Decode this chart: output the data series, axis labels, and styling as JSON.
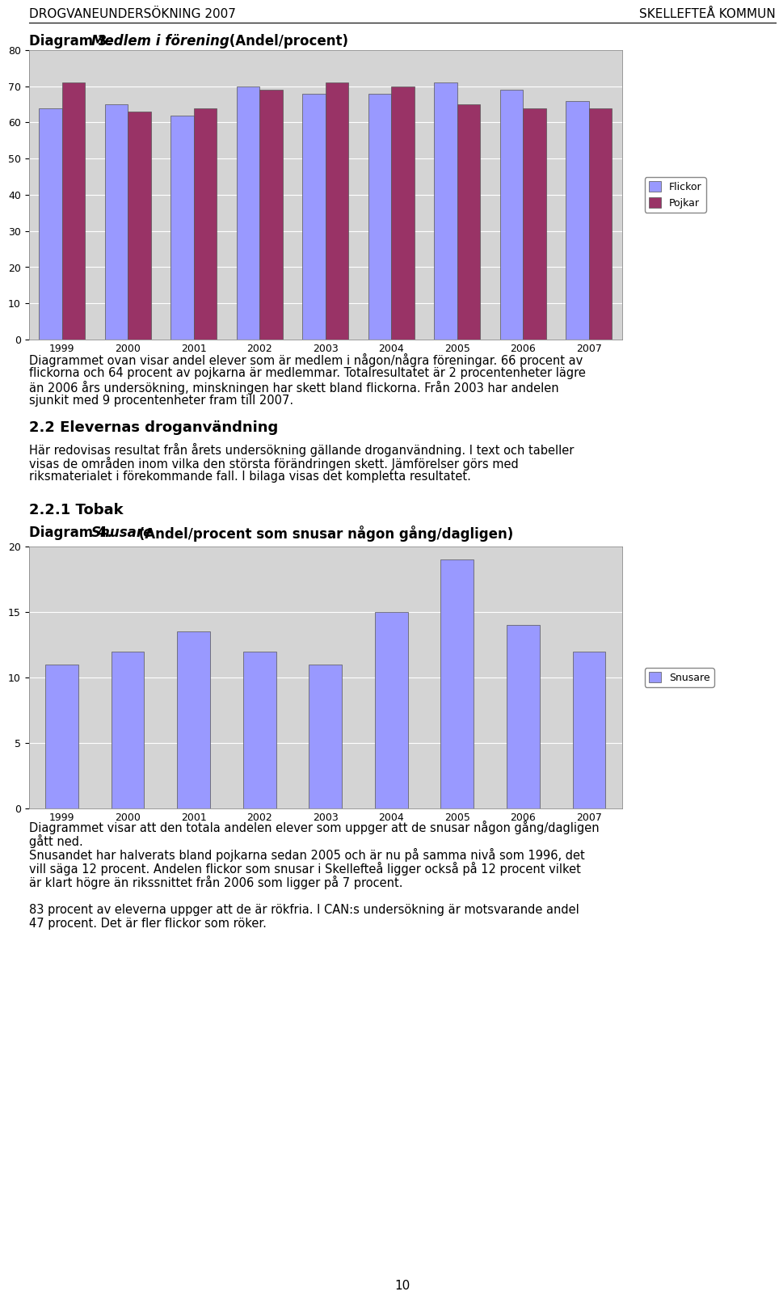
{
  "header_left": "DROGVANEUNDERSÖKNING 2007",
  "header_right": "SKELLEFTEÅ KOMMUN",
  "years": [
    1999,
    2000,
    2001,
    2002,
    2003,
    2004,
    2005,
    2006,
    2007
  ],
  "flickor_values": [
    64,
    65,
    62,
    70,
    68,
    68,
    71,
    69,
    66
  ],
  "pojkar_values": [
    71,
    63,
    64,
    69,
    71,
    70,
    65,
    64,
    64
  ],
  "flickor_color": "#9999ff",
  "pojkar_color": "#993366",
  "chart1_ylim": [
    0,
    80
  ],
  "chart1_yticks": [
    0,
    10,
    20,
    30,
    40,
    50,
    60,
    70,
    80
  ],
  "chart1_bg": "#d4d4d4",
  "section_title": "2.2 Elevernas droganvändning",
  "subsection_title": "2.2.1 Tobak",
  "snusare_values": [
    11,
    12,
    13.5,
    12,
    11,
    15,
    19,
    14,
    12
  ],
  "snusare_color": "#9999ff",
  "chart2_ylim": [
    0,
    20
  ],
  "chart2_yticks": [
    0,
    5,
    10,
    15,
    20
  ],
  "chart2_bg": "#d4d4d4",
  "page_number": "10",
  "text1_lines": [
    "Diagrammet ovan visar andel elever som är medlem i någon/några föreningar. 66 procent av",
    "flickorna och 64 procent av pojkarna är medlemmar. Totalresultatet är 2 procentenheter lägre",
    "än 2006 års undersökning, minskningen har skett bland flickorna. Från 2003 har andelen",
    "sjunkit med 9 procentenheter fram till 2007."
  ],
  "section_body_lines": [
    "Här redovisas resultat från årets undersökning gällande droganvändning. I text och tabeller",
    "visas de områden inom vilka den största förändringen skett. Jämförelser görs med",
    "riksmaterialet i förekommande fall. I bilaga visas det kompletta resultatet."
  ],
  "text2_lines": [
    "Diagrammet visar att den totala andelen elever som uppger att de snusar någon gång/dagligen",
    "gått ned.",
    "Snusandet har halverats bland pojkarna sedan 2005 och är nu på samma nivå som 1996, det",
    "vill säga 12 procent. Andelen flickor som snusar i Skellefteå ligger också på 12 procent vilket",
    "är klart högre än rikssnittet från 2006 som ligger på 7 procent."
  ],
  "text3_lines": [
    "83 procent av eleverna uppger att de är rökfria. I CAN:s undersökning är motsvarande andel",
    "47 procent. Det är fler flickor som röker."
  ]
}
